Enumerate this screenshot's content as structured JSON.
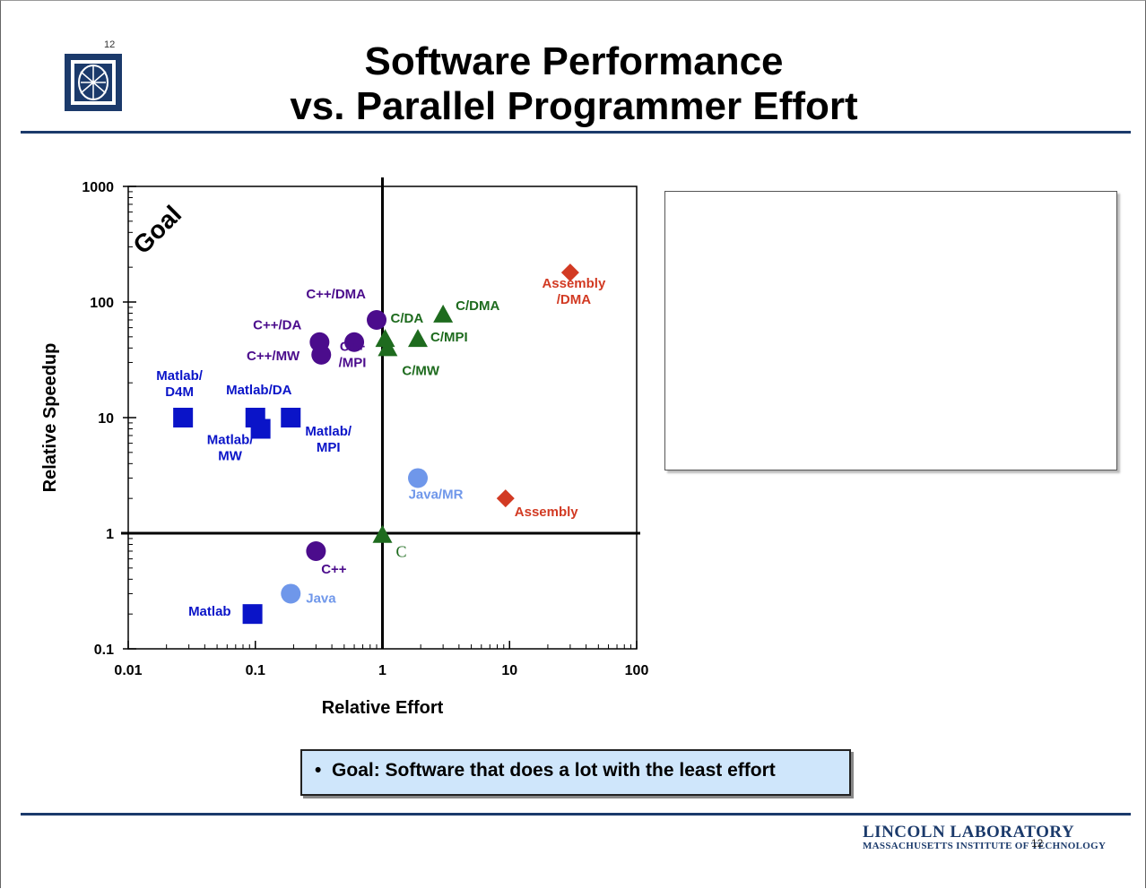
{
  "slide": {
    "number_top": "12",
    "title_line1": "Software Performance",
    "title_line2": "vs. Parallel Programmer Effort",
    "note": "Goal:   Software that does a lot with the least effort",
    "lab_name": "LINCOLN LABORATORY",
    "lab_sub": "MASSACHUSETTS INSTITUTE OF TECHNOLOGY",
    "number_bottom": "12",
    "colors": {
      "rule": "#1b3a6b",
      "note_bg": "#cfe6fb"
    }
  },
  "chart_data": {
    "type": "scatter",
    "x_scale": "log",
    "y_scale": "log",
    "xlabel": "Relative Effort",
    "ylabel": "Relative Speedup",
    "xlim": [
      0.01,
      100
    ],
    "ylim": [
      0.1,
      1000
    ],
    "xticks": [
      "0.01",
      "0.1",
      "1",
      "10",
      "100"
    ],
    "yticks": [
      "0.1",
      "1",
      "10",
      "100",
      "1000"
    ],
    "goal_label": "Goal",
    "reference_lines": {
      "x": 1,
      "y": 1
    },
    "points": [
      {
        "label": "Matlab/ D4M",
        "x": 0.027,
        "y": 10,
        "shape": "square",
        "color": "#0a14c8"
      },
      {
        "label": "Matlab/DA",
        "x": 0.1,
        "y": 10,
        "shape": "square",
        "color": "#0a14c8"
      },
      {
        "label": "Matlab/ MW",
        "x": 0.11,
        "y": 8,
        "shape": "square",
        "color": "#0a14c8"
      },
      {
        "label": "Matlab/ MPI",
        "x": 0.19,
        "y": 10,
        "shape": "square",
        "color": "#0a14c8"
      },
      {
        "label": "Matlab",
        "x": 0.095,
        "y": 0.2,
        "shape": "square",
        "color": "#0a14c8"
      },
      {
        "label": "C++/DMA",
        "x": 0.9,
        "y": 70,
        "shape": "circle",
        "color": "#4b0c8c"
      },
      {
        "label": "C++/DA",
        "x": 0.32,
        "y": 45,
        "shape": "circle",
        "color": "#4b0c8c"
      },
      {
        "label": "C++/MW",
        "x": 0.33,
        "y": 35,
        "shape": "circle",
        "color": "#4b0c8c"
      },
      {
        "label": "C++ /MPI",
        "x": 0.6,
        "y": 45,
        "shape": "circle",
        "color": "#4b0c8c"
      },
      {
        "label": "C++",
        "x": 0.3,
        "y": 0.7,
        "shape": "circle",
        "color": "#4b0c8c"
      },
      {
        "label": "C/DA",
        "x": 1.05,
        "y": 48,
        "shape": "triangle",
        "color": "#1e6b1e"
      },
      {
        "label": "C/MW",
        "x": 1.1,
        "y": 40,
        "shape": "triangle",
        "color": "#1e6b1e"
      },
      {
        "label": "C/MPI",
        "x": 1.9,
        "y": 48,
        "shape": "triangle",
        "color": "#1e6b1e"
      },
      {
        "label": "C/DMA",
        "x": 3.0,
        "y": 78,
        "shape": "triangle",
        "color": "#1e6b1e"
      },
      {
        "label": "C",
        "x": 1.0,
        "y": 0.97,
        "shape": "triangle",
        "color": "#1e6b1e"
      },
      {
        "label": "Java/MR",
        "x": 1.9,
        "y": 3,
        "shape": "circle",
        "color": "#6f97ea"
      },
      {
        "label": "Java",
        "x": 0.19,
        "y": 0.3,
        "shape": "circle",
        "color": "#6f97ea"
      },
      {
        "label": "Assembly",
        "x": 9.3,
        "y": 2,
        "shape": "diamond",
        "color": "#d23a23"
      },
      {
        "label": "Assembly /DMA",
        "x": 30,
        "y": 180,
        "shape": "diamond",
        "color": "#d23a23"
      }
    ]
  }
}
